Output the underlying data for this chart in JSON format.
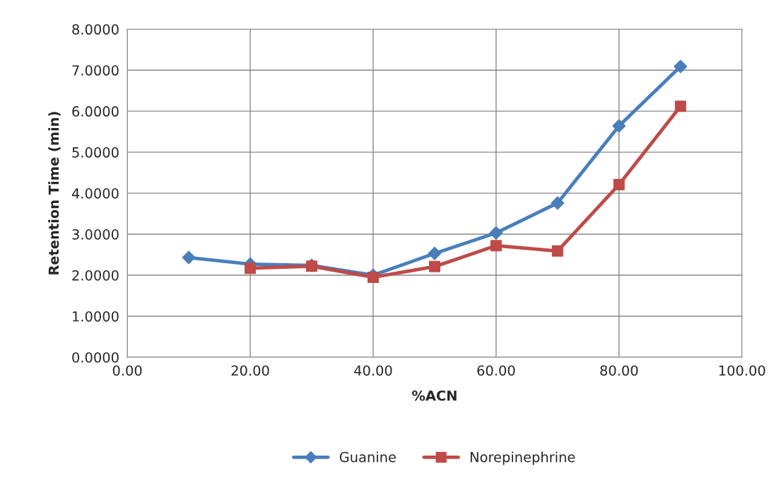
{
  "chart_data": {
    "type": "line",
    "xlabel": "%ACN",
    "ylabel": "Retention Time (min)",
    "xlim": [
      0,
      100
    ],
    "xticks": [
      {
        "value": 0,
        "label": "0.00"
      },
      {
        "value": 20,
        "label": "20.00"
      },
      {
        "value": 40,
        "label": "40.00"
      },
      {
        "value": 60,
        "label": "60.00"
      },
      {
        "value": 80,
        "label": "80.00"
      },
      {
        "value": 100,
        "label": "100.00"
      }
    ],
    "ylim": [
      0,
      8
    ],
    "yticks": [
      {
        "value": 0,
        "label": "0.0000"
      },
      {
        "value": 1,
        "label": "1.0000"
      },
      {
        "value": 2,
        "label": "2.0000"
      },
      {
        "value": 3,
        "label": "3.0000"
      },
      {
        "value": 4,
        "label": "4.0000"
      },
      {
        "value": 5,
        "label": "5.0000"
      },
      {
        "value": 6,
        "label": "6.0000"
      },
      {
        "value": 7,
        "label": "7.0000"
      },
      {
        "value": 8,
        "label": "8.0000"
      }
    ],
    "grid": true,
    "legend": "bottom",
    "line_style": "solid",
    "series": [
      {
        "name": "Guanine",
        "color": "#4a7ebb",
        "marker": "diamond",
        "x": [
          10,
          20,
          30,
          40,
          50,
          60,
          70,
          80,
          90
        ],
        "values": [
          2.43,
          2.27,
          2.24,
          2.0,
          2.53,
          3.03,
          3.76,
          5.64,
          7.09
        ]
      },
      {
        "name": "Norepinephrine",
        "color": "#be4b48",
        "marker": "square",
        "x": [
          20,
          30,
          40,
          50,
          60,
          70,
          80,
          90
        ],
        "values": [
          2.17,
          2.22,
          1.95,
          2.21,
          2.72,
          2.59,
          4.21,
          6.12
        ]
      }
    ]
  }
}
